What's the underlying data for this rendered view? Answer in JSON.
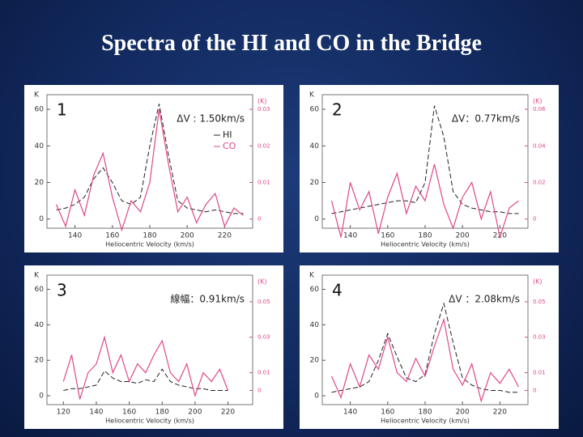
{
  "title": "Spectra of the HI and CO in the Bridge",
  "chart_data": [
    {
      "type": "line",
      "title": "1",
      "annotation": "ΔV : 1.50km/s",
      "x_label": "Heliocentric Velocity (km/s)",
      "y_label": "K",
      "y2_label": "(K)",
      "legend": true,
      "x": [
        130,
        135,
        140,
        145,
        150,
        155,
        160,
        165,
        170,
        175,
        180,
        185,
        190,
        195,
        200,
        205,
        210,
        215,
        220,
        225,
        230
      ],
      "series": [
        {
          "name": "HI",
          "color": "#222222",
          "dashed": true,
          "values": [
            5,
            6,
            8,
            12,
            22,
            28,
            20,
            10,
            8,
            12,
            40,
            63,
            35,
            10,
            6,
            5,
            4,
            5,
            4,
            3,
            3
          ]
        },
        {
          "name": "CO",
          "color": "#e0478a",
          "axis": "y2",
          "values": [
            0.004,
            -0.002,
            0.008,
            0.001,
            0.012,
            0.018,
            0.006,
            -0.003,
            0.005,
            0.002,
            0.01,
            0.03,
            0.015,
            0.002,
            0.006,
            -0.001,
            0.004,
            0.007,
            -0.002,
            0.003,
            0.001
          ]
        }
      ],
      "xlim": [
        125,
        235
      ],
      "xticks": [
        140,
        160,
        180,
        200,
        220
      ],
      "ylim": [
        -5,
        68
      ],
      "yticks": [
        0,
        20,
        40,
        60
      ],
      "y2lim": [
        -0.0025,
        0.034
      ],
      "y2ticks": [
        0,
        0.01,
        0.02,
        0.03
      ]
    },
    {
      "type": "line",
      "title": "2",
      "annotation": "ΔV：0.77km/s",
      "x_label": "Heliocentric Velocity (km/s)",
      "y_label": "K",
      "y2_label": "(K)",
      "x": [
        130,
        135,
        140,
        145,
        150,
        155,
        160,
        165,
        170,
        175,
        180,
        185,
        190,
        195,
        200,
        205,
        210,
        215,
        220,
        225,
        230
      ],
      "series": [
        {
          "color": "#222222",
          "dashed": true,
          "values": [
            3,
            4,
            5,
            6,
            7,
            8,
            9,
            10,
            10,
            9,
            20,
            62,
            45,
            15,
            8,
            6,
            5,
            4,
            4,
            3,
            3
          ]
        },
        {
          "color": "#e0478a",
          "axis": "y2",
          "values": [
            0.01,
            -0.01,
            0.02,
            0.005,
            0.015,
            -0.008,
            0.012,
            0.025,
            0.003,
            0.018,
            0.01,
            0.03,
            0.008,
            -0.005,
            0.012,
            0.02,
            0.0,
            0.015,
            -0.01,
            0.006,
            0.01
          ]
        }
      ],
      "xlim": [
        125,
        235
      ],
      "xticks": [
        140,
        160,
        180,
        200,
        220
      ],
      "ylim": [
        -5,
        68
      ],
      "yticks": [
        0,
        20,
        40,
        60
      ],
      "y2lim": [
        -0.005,
        0.068
      ],
      "y2ticks": [
        0,
        0.02,
        0.04,
        0.06
      ]
    },
    {
      "type": "line",
      "title": "3",
      "annotation": "線幅：0.91km/s",
      "x_label": "Heliocentric Velocity (km/s)",
      "y_label": "K",
      "y2_label": "(K)",
      "x": [
        120,
        125,
        130,
        135,
        140,
        145,
        150,
        155,
        160,
        165,
        170,
        175,
        180,
        185,
        190,
        195,
        200,
        205,
        210,
        215,
        220
      ],
      "series": [
        {
          "color": "#222222",
          "dashed": true,
          "values": [
            3,
            4,
            4,
            5,
            6,
            14,
            10,
            8,
            8,
            7,
            9,
            8,
            15,
            8,
            6,
            5,
            4,
            4,
            3,
            3,
            3
          ]
        },
        {
          "color": "#e0478a",
          "axis": "y2",
          "values": [
            0.005,
            0.02,
            -0.005,
            0.01,
            0.015,
            0.03,
            0.01,
            0.02,
            0.005,
            0.015,
            0.01,
            0.02,
            0.028,
            0.01,
            0.005,
            0.015,
            -0.003,
            0.01,
            0.005,
            0.012,
            0.0
          ]
        }
      ],
      "xlim": [
        110,
        235
      ],
      "xticks": [
        120,
        140,
        160,
        180,
        200,
        220
      ],
      "ylim": [
        -5,
        68
      ],
      "yticks": [
        0,
        20,
        40,
        60
      ],
      "y2lim": [
        -0.008,
        0.065
      ],
      "y2ticks": [
        0,
        0.01,
        0.03,
        0.05
      ]
    },
    {
      "type": "line",
      "title": "4",
      "annotation": "ΔV ：2.08km/s",
      "x_label": "Heliocentric Velocity (km/s)",
      "y_label": "K",
      "y2_label": "(K)",
      "x": [
        130,
        135,
        140,
        145,
        150,
        155,
        160,
        165,
        170,
        175,
        180,
        185,
        190,
        195,
        200,
        205,
        210,
        215,
        220,
        225,
        230
      ],
      "series": [
        {
          "color": "#222222",
          "dashed": true,
          "values": [
            2,
            3,
            4,
            5,
            8,
            20,
            35,
            22,
            10,
            8,
            12,
            35,
            52,
            30,
            10,
            6,
            4,
            3,
            3,
            2,
            2
          ]
        },
        {
          "color": "#e0478a",
          "axis": "y2",
          "values": [
            0.008,
            -0.004,
            0.015,
            0.002,
            0.02,
            0.012,
            0.03,
            0.01,
            0.005,
            0.018,
            0.008,
            0.025,
            0.04,
            0.012,
            0.003,
            0.015,
            -0.006,
            0.01,
            0.004,
            0.012,
            0.002
          ]
        }
      ],
      "xlim": [
        125,
        235
      ],
      "xticks": [
        140,
        160,
        180,
        200,
        220
      ],
      "ylim": [
        -5,
        68
      ],
      "yticks": [
        0,
        20,
        40,
        60
      ],
      "y2lim": [
        -0.008,
        0.065
      ],
      "y2ticks": [
        0,
        0.01,
        0.03,
        0.05
      ]
    }
  ]
}
